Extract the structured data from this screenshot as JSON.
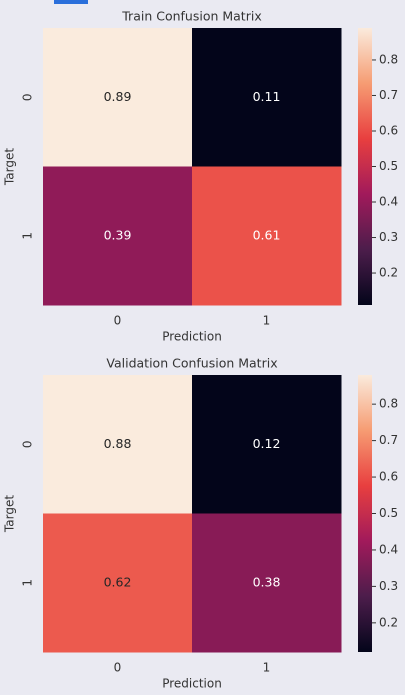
{
  "chart_data": [
    {
      "type": "heatmap",
      "title": "Train Confusion Matrix",
      "xlabel": "Prediction",
      "ylabel": "Target",
      "x_categories": [
        "0",
        "1"
      ],
      "y_categories": [
        "0",
        "1"
      ],
      "values": [
        [
          0.89,
          0.11
        ],
        [
          0.39,
          0.61
        ]
      ],
      "colormap": "rocket",
      "clim": [
        0.11,
        0.89
      ],
      "cticks": [
        0.2,
        0.3,
        0.4,
        0.5,
        0.6,
        0.7,
        0.8
      ]
    },
    {
      "type": "heatmap",
      "title": "Validation Confusion Matrix",
      "xlabel": "Prediction",
      "ylabel": "Target",
      "x_categories": [
        "0",
        "1"
      ],
      "y_categories": [
        "0",
        "1"
      ],
      "values": [
        [
          0.88,
          0.12
        ],
        [
          0.62,
          0.38
        ]
      ],
      "colormap": "rocket",
      "clim": [
        0.12,
        0.88
      ],
      "cticks": [
        0.2,
        0.3,
        0.4,
        0.5,
        0.6,
        0.7,
        0.8
      ]
    }
  ]
}
